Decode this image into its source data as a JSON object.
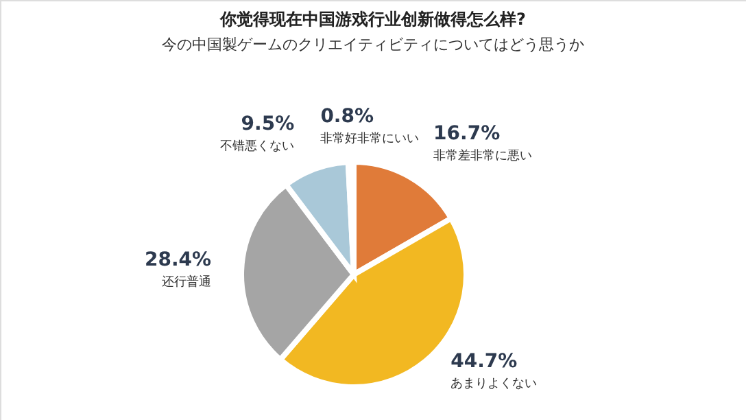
{
  "chart_data": {
    "type": "pie",
    "title": "你觉得现在中国游戏行业创新做得怎么样?",
    "subtitle": "今の中国製ゲームのクリエイティビティについてはどう思うか",
    "categories": [
      "非常差非常に悪い",
      "あまりよくない",
      "还行普通",
      "不错悪くない",
      "非常好非常にいい"
    ],
    "values": [
      16.7,
      44.7,
      28.4,
      9.5,
      0.8
    ],
    "colors": [
      "#e07b39",
      "#f2b822",
      "#a5a5a5",
      "#a9c8d8",
      "#3b7fb5"
    ],
    "value_labels": [
      "16.7%",
      "44.7%",
      "28.4%",
      "9.5%",
      "0.8%"
    ]
  }
}
